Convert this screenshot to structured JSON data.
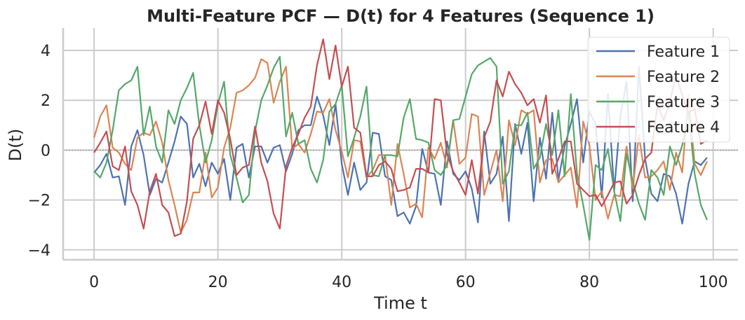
{
  "chart_data": {
    "type": "line",
    "title": "Multi-Feature PCF — D(t) for 4 Features (Sequence 1)",
    "xlabel": "Time t",
    "ylabel": "D(t)",
    "xlim": [
      -5,
      104
    ],
    "ylim": [
      -4.4,
      4.9
    ],
    "xticks": [
      0,
      20,
      40,
      60,
      80,
      100
    ],
    "yticks": [
      -4,
      -2,
      0,
      2,
      4
    ],
    "xtick_labels": [
      "0",
      "20",
      "40",
      "60",
      "80",
      "100"
    ],
    "ytick_labels": [
      "−4",
      "−2",
      "0",
      "2",
      "4"
    ],
    "grid": true,
    "legend_position": "top-right",
    "reference_line_y": 0,
    "x": [
      0,
      1,
      2,
      3,
      4,
      5,
      6,
      7,
      8,
      9,
      10,
      11,
      12,
      13,
      14,
      15,
      16,
      17,
      18,
      19,
      20,
      21,
      22,
      23,
      24,
      25,
      26,
      27,
      28,
      29,
      30,
      31,
      32,
      33,
      34,
      35,
      36,
      37,
      38,
      39,
      40,
      41,
      42,
      43,
      44,
      45,
      46,
      47,
      48,
      49,
      50,
      51,
      52,
      53,
      54,
      55,
      56,
      57,
      58,
      59,
      60,
      61,
      62,
      63,
      64,
      65,
      66,
      67,
      68,
      69,
      70,
      71,
      72,
      73,
      74,
      75,
      76,
      77,
      78,
      79,
      80,
      81,
      82,
      83,
      84,
      85,
      86,
      87,
      88,
      89,
      90,
      91,
      92,
      93,
      94,
      95,
      96,
      97,
      98,
      99
    ],
    "series": [
      {
        "name": "Feature 1",
        "color": "#4c72b0",
        "values": [
          -0.9,
          -0.6,
          -0.15,
          -1.1,
          -1.05,
          -2.2,
          0.15,
          0.8,
          -0.2,
          -1.8,
          -1.15,
          -1.3,
          -0.5,
          0.35,
          1.35,
          1.05,
          -1.1,
          -0.55,
          -1.45,
          -0.5,
          -0.95,
          -0.35,
          -2.0,
          0.1,
          0.25,
          -1.1,
          0.15,
          0.15,
          -0.5,
          0.1,
          0.2,
          -0.85,
          -0.15,
          0.8,
          1.0,
          1.0,
          2.15,
          1.4,
          0.2,
          1.85,
          -0.55,
          -1.8,
          -0.5,
          -1.6,
          -1.3,
          0.7,
          0.65,
          -1.05,
          -1.2,
          -2.65,
          -2.5,
          -2.95,
          -2.25,
          0.05,
          -0.9,
          -0.95,
          -2.2,
          0.35,
          -0.95,
          -1.2,
          -0.85,
          -1.55,
          -2.9,
          0.75,
          -1.35,
          -0.95,
          0.55,
          -2.85,
          1.05,
          -0.15,
          1.1,
          -2.05,
          0.5,
          -1.15,
          1.5,
          -1.2,
          0.15,
          1.05,
          2.05,
          -0.5,
          1.55,
          1.05,
          -1.9,
          2.25,
          -1.65,
          1.35,
          2.75,
          -2.05,
          3.35,
          -0.35,
          -1.75,
          -2.05,
          -0.95,
          -1.05,
          -1.75,
          -2.95,
          -1.35,
          -0.45,
          -0.6,
          -0.3
        ]
      },
      {
        "name": "Feature 2",
        "color": "#dd8452",
        "values": [
          0.5,
          1.35,
          1.8,
          0.1,
          -0.1,
          -0.55,
          -0.8,
          0.5,
          0.7,
          0.6,
          1.15,
          0.3,
          -1.2,
          -2.2,
          -3.3,
          -2.8,
          -1.7,
          -1.7,
          -0.1,
          -1.9,
          -1.5,
          0.1,
          0.9,
          2.3,
          2.4,
          2.6,
          2.9,
          3.65,
          3.5,
          1.9,
          2.75,
          3.35,
          0.05,
          0.25,
          -0.1,
          0.65,
          1.55,
          1.5,
          2.05,
          0.8,
          -0.05,
          -1.1,
          0.4,
          0.35,
          -1.1,
          -0.8,
          -0.2,
          -0.2,
          -2.2,
          0.25,
          -0.95,
          -2.3,
          -2.15,
          -2.7,
          0.1,
          -0.35,
          0.3,
          -0.7,
          1.2,
          -0.55,
          -0.3,
          1.45,
          1.35,
          -1.8,
          -0.9,
          0.0,
          -2.05,
          1.2,
          0.2,
          1.6,
          1.45,
          1.6,
          -1.3,
          -0.4,
          -0.35,
          -1.3,
          -1.0,
          -0.7,
          -2.3,
          1.15,
          0.2,
          -2.0,
          -1.65,
          -2.75,
          -1.8,
          -1.85,
          0.15,
          -1.55,
          0.6,
          -1.1,
          -1.05,
          -0.8,
          -0.45,
          -1.6,
          -0.1,
          -0.9,
          2.2,
          -0.55,
          -1.0,
          -0.45
        ]
      },
      {
        "name": "Feature 3",
        "color": "#55a868",
        "values": [
          -0.85,
          -1.1,
          -0.5,
          0.8,
          2.4,
          2.65,
          2.8,
          3.35,
          0.6,
          1.75,
          0.15,
          -0.5,
          1.6,
          1.05,
          2.0,
          2.5,
          3.1,
          1.0,
          -0.5,
          0.4,
          1.85,
          2.75,
          -0.2,
          -1.1,
          -2.1,
          -1.8,
          0.75,
          2.0,
          2.6,
          3.3,
          3.75,
          0.55,
          1.5,
          0.25,
          0.4,
          -0.75,
          -1.3,
          -0.4,
          1.55,
          1.85,
          2.6,
          -0.25,
          0.5,
          1.35,
          2.55,
          -1.0,
          -1.05,
          -0.2,
          -0.2,
          -0.25,
          1.3,
          2.05,
          0.45,
          0.4,
          0.3,
          -0.8,
          -1.0,
          -0.6,
          1.2,
          1.25,
          2.15,
          3.05,
          3.4,
          3.55,
          3.7,
          3.35,
          -1.35,
          -0.85,
          1.0,
          1.0,
          1.5,
          -0.75,
          -0.3,
          1.05,
          -0.2,
          1.6,
          -1.05,
          2.25,
          -0.95,
          -2.2,
          -3.6,
          -0.6,
          -0.8,
          0.05,
          -1.65,
          -2.85,
          -0.15,
          -1.25,
          -2.15,
          -2.8,
          -0.8,
          -1.1,
          -1.8,
          0.15,
          -0.6,
          0.2,
          1.55,
          -0.95,
          -2.2,
          -2.8
        ]
      },
      {
        "name": "Feature 4",
        "color": "#c44e52",
        "values": [
          -0.1,
          0.3,
          0.75,
          -0.65,
          -0.8,
          0.15,
          -1.65,
          -2.2,
          -3.15,
          -1.65,
          -0.95,
          -2.2,
          -2.5,
          -3.45,
          -3.35,
          -2.05,
          0.45,
          1.0,
          1.95,
          0.65,
          2.0,
          1.5,
          0.45,
          -1.0,
          -0.7,
          -0.6,
          0.95,
          -0.5,
          -1.25,
          -2.55,
          -3.15,
          -0.65,
          0.1,
          0.65,
          1.3,
          1.75,
          3.4,
          4.45,
          2.85,
          4.2,
          2.55,
          3.35,
          0.9,
          0.7,
          -1.05,
          -1.05,
          -0.6,
          -0.45,
          -0.75,
          -1.65,
          -1.6,
          -1.5,
          -0.75,
          -0.75,
          -0.9,
          2.05,
          2.0,
          -0.15,
          -0.85,
          -1.3,
          -1.8,
          -0.4,
          -1.75,
          0.5,
          1.15,
          2.8,
          2.15,
          3.15,
          2.65,
          2.3,
          1.8,
          2.05,
          1.1,
          2.2,
          -0.95,
          -0.35,
          0.35,
          0.35,
          -1.35,
          -1.6,
          -1.85,
          -1.8,
          -2.25,
          -1.8,
          -1.3,
          -1.25,
          -2.15,
          -1.8,
          -1.0,
          -0.35,
          -0.1,
          1.8,
          1.2,
          1.95,
          3.0,
          2.2,
          1.5,
          1.65,
          0.25,
          0.4
        ]
      }
    ]
  }
}
